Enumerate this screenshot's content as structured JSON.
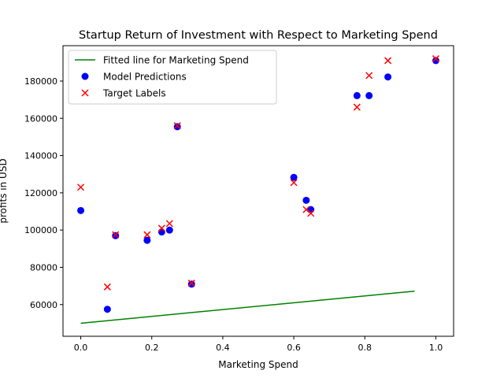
{
  "chart_data": {
    "type": "scatter",
    "title": "Startup Return of Investment with Respect to Marketing Spend",
    "xlabel": "Marketing Spend",
    "ylabel": "profits in USD",
    "xlim": [
      -0.05,
      1.05
    ],
    "ylim": [
      43000,
      199000
    ],
    "x_ticks": [
      0.0,
      0.2,
      0.4,
      0.6,
      0.8,
      1.0
    ],
    "x_tick_labels": [
      "0.0",
      "0.2",
      "0.4",
      "0.6",
      "0.8",
      "1.0"
    ],
    "y_ticks": [
      60000,
      80000,
      100000,
      120000,
      140000,
      160000,
      180000
    ],
    "y_tick_labels": [
      "60000",
      "80000",
      "100000",
      "120000",
      "140000",
      "160000",
      "180000"
    ],
    "grid": false,
    "legend_position": "top-left",
    "series": [
      {
        "name": "Fitted line for Marketing Spend",
        "kind": "line",
        "color": "#008000",
        "points": [
          [
            0.0,
            50000
          ],
          [
            0.94,
            67200
          ]
        ]
      },
      {
        "name": "Model Predictions",
        "kind": "scatter-circle",
        "color": "#0000ff",
        "points": [
          [
            0.0,
            110500
          ],
          [
            0.075,
            57500
          ],
          [
            0.098,
            97000
          ],
          [
            0.187,
            94500
          ],
          [
            0.228,
            99000
          ],
          [
            0.25,
            100000
          ],
          [
            0.272,
            155500
          ],
          [
            0.312,
            71000
          ],
          [
            0.6,
            128300
          ],
          [
            0.635,
            116000
          ],
          [
            0.648,
            111000
          ],
          [
            0.778,
            172200
          ],
          [
            0.812,
            172200
          ],
          [
            0.865,
            182200
          ],
          [
            1.0,
            191000
          ]
        ]
      },
      {
        "name": "Target Labels",
        "kind": "scatter-x",
        "color": "#ff0000",
        "points": [
          [
            0.0,
            123000
          ],
          [
            0.075,
            69500
          ],
          [
            0.098,
            97500
          ],
          [
            0.187,
            97500
          ],
          [
            0.228,
            101000
          ],
          [
            0.25,
            103500
          ],
          [
            0.272,
            156000
          ],
          [
            0.312,
            71500
          ],
          [
            0.6,
            125500
          ],
          [
            0.635,
            111000
          ],
          [
            0.648,
            109000
          ],
          [
            0.778,
            166000
          ],
          [
            0.812,
            183000
          ],
          [
            0.865,
            191000
          ],
          [
            1.0,
            192000
          ]
        ]
      }
    ]
  }
}
